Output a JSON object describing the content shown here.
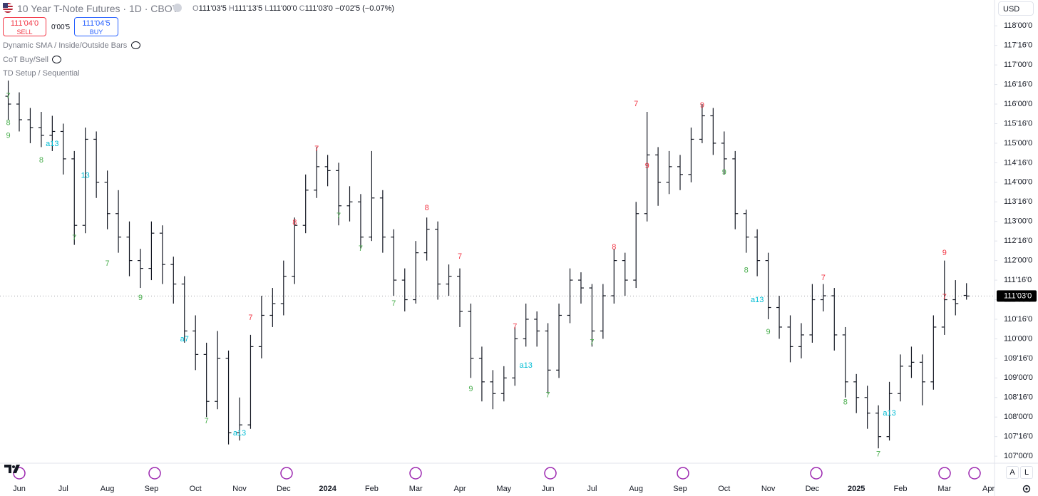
{
  "header": {
    "title": "10 Year T-Note Futures · 1D · CBOT",
    "o_label": "O",
    "o_value": "111'03'5",
    "h_label": "H",
    "h_value": "111'13'5",
    "l_label": "L",
    "l_value": "111'00'0",
    "c_label": "C",
    "c_value": "111'03'0",
    "change": "−0'02'5 (−0.07%)",
    "sell_price": "111'04'0",
    "sell": "SELL",
    "spread": "0'00'5",
    "buy_price": "111'04'5",
    "buy": "BUY",
    "currency": "USD"
  },
  "indicators": [
    "Dynamic SMA / Inside/Outside Bars",
    "CoT Buy/Sell",
    "TD Setup / Sequential"
  ],
  "controls": {
    "auto": "A",
    "log": "L"
  },
  "chart_data": {
    "type": "ohlc",
    "color": "#131722",
    "grid": false,
    "categories": [
      null,
      "Jun",
      null,
      null,
      null,
      "Jul",
      null,
      null,
      null,
      "Aug",
      null,
      null,
      null,
      "Sep",
      null,
      null,
      null,
      "Oct",
      null,
      null,
      null,
      "Nov",
      null,
      null,
      null,
      "Dec",
      null,
      null,
      null,
      "2024",
      null,
      null,
      null,
      "Feb",
      null,
      null,
      null,
      "Mar",
      null,
      null,
      null,
      "Apr",
      null,
      null,
      null,
      "May",
      null,
      null,
      null,
      "Jun",
      null,
      null,
      null,
      "Jul",
      null,
      null,
      null,
      "Aug",
      null,
      null,
      null,
      "Sep",
      null,
      null,
      null,
      "Oct",
      null,
      null,
      null,
      "Nov",
      null,
      null,
      null,
      "Dec",
      null,
      null,
      null,
      "2025",
      null,
      null,
      null,
      "Feb",
      null,
      null,
      null,
      "Mar",
      null,
      null,
      null,
      "Apr"
    ],
    "open": [
      116.2,
      116.0,
      115.6,
      115.4,
      115.2,
      115.3,
      114.6,
      112.9,
      115.1,
      114.0,
      113.2,
      112.6,
      112.0,
      111.8,
      112.7,
      111.9,
      111.4,
      110.2,
      109.6,
      108.4,
      109.5,
      107.6,
      107.8,
      109.8,
      110.6,
      110.9,
      111.6,
      112.9,
      113.8,
      114.4,
      114.3,
      113.4,
      113.5,
      112.6,
      113.6,
      112.6,
      111.5,
      111.0,
      112.2,
      112.8,
      111.4,
      111.6,
      110.7,
      109.5,
      108.9,
      108.6,
      109.0,
      110.0,
      110.5,
      110.2,
      109.2,
      110.6,
      111.5,
      111.3,
      110.2,
      111.1,
      112.0,
      111.5,
      113.2,
      114.7,
      114.0,
      114.4,
      114.2,
      115.1,
      115.7,
      115.0,
      114.6,
      113.2,
      112.6,
      112.0,
      110.8,
      110.3,
      109.8,
      110.1,
      111.0,
      111.1,
      110.1,
      108.9,
      108.5,
      108.1,
      107.5,
      108.6,
      109.3,
      109.4,
      108.9,
      110.3,
      111.0,
      111.109375,
      null,
      null
    ],
    "high": [
      116.6,
      116.3,
      115.9,
      115.8,
      115.7,
      115.5,
      114.8,
      115.4,
      115.3,
      114.3,
      113.8,
      113.0,
      112.3,
      113.0,
      112.9,
      112.1,
      111.6,
      110.6,
      109.9,
      110.2,
      109.7,
      108.5,
      110.1,
      111.1,
      111.3,
      112.0,
      113.1,
      114.2,
      114.9,
      114.7,
      114.5,
      113.9,
      113.7,
      114.8,
      113.8,
      112.8,
      111.8,
      112.5,
      113.1,
      113.0,
      111.9,
      111.8,
      110.9,
      109.8,
      109.2,
      109.3,
      110.3,
      110.9,
      110.7,
      110.4,
      110.9,
      111.8,
      111.7,
      111.4,
      111.4,
      112.3,
      112.2,
      113.5,
      115.8,
      114.9,
      114.8,
      114.7,
      115.4,
      116.0,
      115.9,
      115.3,
      114.8,
      113.3,
      112.8,
      112.2,
      111.1,
      110.6,
      110.4,
      111.4,
      111.4,
      111.3,
      110.3,
      109.1,
      108.8,
      108.3,
      108.9,
      109.6,
      109.8,
      109.6,
      110.6,
      112.0,
      111.5,
      111.421875,
      null,
      null
    ],
    "low": [
      115.6,
      115.3,
      115.0,
      114.9,
      114.8,
      114.2,
      112.4,
      112.7,
      113.6,
      112.8,
      112.2,
      111.6,
      111.3,
      111.5,
      111.4,
      110.9,
      109.9,
      109.2,
      108.0,
      108.2,
      107.3,
      107.4,
      107.7,
      109.5,
      110.3,
      110.6,
      111.4,
      112.7,
      113.6,
      113.9,
      112.9,
      113.0,
      112.3,
      112.5,
      112.2,
      111.1,
      110.7,
      110.9,
      112.0,
      111.0,
      111.1,
      110.3,
      109.0,
      108.4,
      108.2,
      108.4,
      108.8,
      109.8,
      109.8,
      108.6,
      109.0,
      110.4,
      110.9,
      109.8,
      110.0,
      110.9,
      111.1,
      111.3,
      113.0,
      113.4,
      113.7,
      113.8,
      114.0,
      115.0,
      114.7,
      114.2,
      112.8,
      112.2,
      111.6,
      110.5,
      110.0,
      109.4,
      109.5,
      109.9,
      110.7,
      109.7,
      108.5,
      108.1,
      107.7,
      107.2,
      107.4,
      108.4,
      109.0,
      108.3,
      108.7,
      110.1,
      110.6,
      111.0,
      null,
      null
    ],
    "close": [
      116.0,
      115.6,
      115.4,
      115.2,
      115.3,
      114.6,
      112.9,
      115.1,
      114.0,
      113.2,
      112.6,
      112.0,
      111.8,
      112.7,
      111.9,
      111.4,
      110.2,
      109.6,
      108.4,
      109.5,
      107.6,
      107.8,
      109.8,
      110.6,
      110.9,
      111.6,
      112.9,
      113.8,
      114.4,
      114.3,
      113.4,
      113.5,
      112.6,
      113.6,
      112.6,
      111.5,
      111.0,
      112.2,
      112.8,
      111.4,
      111.6,
      110.7,
      109.5,
      108.9,
      108.6,
      109.0,
      110.0,
      110.5,
      110.2,
      109.2,
      110.6,
      111.5,
      111.3,
      110.2,
      111.1,
      112.0,
      111.5,
      113.2,
      114.7,
      114.0,
      114.4,
      114.2,
      115.1,
      115.7,
      115.0,
      114.6,
      113.2,
      112.6,
      112.0,
      110.8,
      110.3,
      109.8,
      110.1,
      111.0,
      111.1,
      110.1,
      108.9,
      108.5,
      108.1,
      107.5,
      108.6,
      109.3,
      109.4,
      108.9,
      110.3,
      111.0,
      110.9,
      111.09375,
      null,
      null
    ],
    "last_price": {
      "value": 111.09375,
      "label": "111'03'0"
    },
    "ylim": [
      106.82,
      118.66
    ],
    "yticks": [
      {
        "value": 107,
        "label": "107'00'0"
      },
      {
        "value": 107.5,
        "label": "107'16'0"
      },
      {
        "value": 108,
        "label": "108'00'0"
      },
      {
        "value": 108.5,
        "label": "108'16'0"
      },
      {
        "value": 109,
        "label": "109'00'0"
      },
      {
        "value": 109.5,
        "label": "109'16'0"
      },
      {
        "value": 110,
        "label": "110'00'0"
      },
      {
        "value": 110.5,
        "label": "110'16'0"
      },
      {
        "value": 111,
        "label": "111'00'0"
      },
      {
        "value": 111.5,
        "label": "111'16'0"
      },
      {
        "value": 112,
        "label": "112'00'0"
      },
      {
        "value": 112.5,
        "label": "112'16'0"
      },
      {
        "value": 113,
        "label": "113'00'0"
      },
      {
        "value": 113.5,
        "label": "113'16'0"
      },
      {
        "value": 114,
        "label": "114'00'0"
      },
      {
        "value": 114.5,
        "label": "114'16'0"
      },
      {
        "value": 115,
        "label": "115'00'0"
      },
      {
        "value": 115.5,
        "label": "115'16'0"
      },
      {
        "value": 116,
        "label": "116'00'0"
      },
      {
        "value": 116.5,
        "label": "116'16'0"
      },
      {
        "value": 117,
        "label": "117'00'0"
      },
      {
        "value": 117.5,
        "label": "117'16'0"
      },
      {
        "value": 118,
        "label": "118'00'0"
      }
    ],
    "annotations": [
      {
        "text": "7",
        "bar": 0,
        "price": 116.2,
        "color": "#4caf50"
      },
      {
        "text": "8",
        "bar": 0,
        "price": 115.52,
        "color": "#4caf50"
      },
      {
        "text": "9",
        "bar": 0,
        "price": 115.19,
        "color": "#4caf50"
      },
      {
        "text": "8",
        "bar": 3,
        "price": 114.56,
        "color": "#4caf50"
      },
      {
        "text": "a13",
        "bar": 4,
        "price": 114.98,
        "color": "#00bcd4"
      },
      {
        "text": "13",
        "bar": 7,
        "price": 114.17,
        "color": "#00bcd4"
      },
      {
        "text": "7",
        "bar": 6,
        "price": 112.57,
        "color": "#4caf50"
      },
      {
        "text": "7",
        "bar": 9,
        "price": 111.92,
        "color": "#4caf50"
      },
      {
        "text": "9",
        "bar": 12,
        "price": 111.04,
        "color": "#4caf50"
      },
      {
        "text": "a7",
        "bar": 16,
        "price": 109.99,
        "color": "#00bcd4"
      },
      {
        "text": "7",
        "bar": 18,
        "price": 107.89,
        "color": "#4caf50"
      },
      {
        "text": "a13",
        "bar": 21,
        "price": 107.58,
        "color": "#00bcd4"
      },
      {
        "text": "7",
        "bar": 22,
        "price": 110.53,
        "color": "#f23645"
      },
      {
        "text": "8",
        "bar": 26,
        "price": 112.97,
        "color": "#f23645"
      },
      {
        "text": "7",
        "bar": 28,
        "price": 114.85,
        "color": "#f23645"
      },
      {
        "text": "7",
        "bar": 30,
        "price": 113.14,
        "color": "#4caf50"
      },
      {
        "text": "7",
        "bar": 32,
        "price": 112.3,
        "color": "#4caf50"
      },
      {
        "text": "7",
        "bar": 35,
        "price": 110.9,
        "color": "#4caf50"
      },
      {
        "text": "8",
        "bar": 38,
        "price": 113.34,
        "color": "#f23645"
      },
      {
        "text": "7",
        "bar": 41,
        "price": 112.1,
        "color": "#f23645"
      },
      {
        "text": "9",
        "bar": 42,
        "price": 108.71,
        "color": "#4caf50"
      },
      {
        "text": "7",
        "bar": 46,
        "price": 110.31,
        "color": "#f23645"
      },
      {
        "text": "a13",
        "bar": 47,
        "price": 109.31,
        "color": "#00bcd4"
      },
      {
        "text": "7",
        "bar": 49,
        "price": 108.56,
        "color": "#4caf50"
      },
      {
        "text": "7",
        "bar": 53,
        "price": 109.91,
        "color": "#4caf50"
      },
      {
        "text": "8",
        "bar": 55,
        "price": 112.34,
        "color": "#f23645"
      },
      {
        "text": "7",
        "bar": 57,
        "price": 116.0,
        "color": "#f23645"
      },
      {
        "text": "9",
        "bar": 58,
        "price": 114.41,
        "color": "#f23645"
      },
      {
        "text": "9",
        "bar": 63,
        "price": 115.96,
        "color": "#f23645"
      },
      {
        "text": "9",
        "bar": 65,
        "price": 114.25,
        "color": "#4caf50"
      },
      {
        "text": "8",
        "bar": 67,
        "price": 111.75,
        "color": "#4caf50"
      },
      {
        "text": "a13",
        "bar": 68,
        "price": 110.99,
        "color": "#00bcd4"
      },
      {
        "text": "9",
        "bar": 69,
        "price": 110.17,
        "color": "#4caf50"
      },
      {
        "text": "7",
        "bar": 74,
        "price": 111.55,
        "color": "#f23645"
      },
      {
        "text": "8",
        "bar": 76,
        "price": 108.38,
        "color": "#4caf50"
      },
      {
        "text": "7",
        "bar": 79,
        "price": 107.05,
        "color": "#4caf50"
      },
      {
        "text": "a13",
        "bar": 80,
        "price": 108.09,
        "color": "#00bcd4"
      },
      {
        "text": "9",
        "bar": 85,
        "price": 112.19,
        "color": "#f23645"
      },
      {
        "text": "7",
        "bar": 85,
        "price": 111.06,
        "color": "#f23645"
      }
    ]
  }
}
